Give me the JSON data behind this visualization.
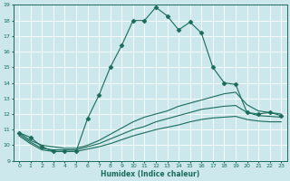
{
  "xlabel": "Humidex (Indice chaleur)",
  "xlim": [
    -0.5,
    23.5
  ],
  "ylim": [
    9,
    19
  ],
  "yticks": [
    9,
    10,
    11,
    12,
    13,
    14,
    15,
    16,
    17,
    18,
    19
  ],
  "xticks": [
    0,
    1,
    2,
    3,
    4,
    5,
    6,
    7,
    8,
    9,
    10,
    11,
    12,
    13,
    14,
    15,
    16,
    17,
    18,
    19,
    20,
    21,
    22,
    23
  ],
  "bg_color": "#cce8ec",
  "grid_color": "#b0d4d8",
  "line_color": "#1a6b5a",
  "lines": [
    {
      "x": [
        0,
        1,
        2,
        3,
        4,
        5,
        6,
        7,
        8,
        9,
        10,
        11,
        12,
        13,
        14,
        15,
        16,
        17,
        18,
        19,
        20,
        21,
        22,
        23
      ],
      "y": [
        10.8,
        10.5,
        9.9,
        9.6,
        9.6,
        9.6,
        11.7,
        13.2,
        15.0,
        16.4,
        18.0,
        18.0,
        18.85,
        18.3,
        17.4,
        17.9,
        17.2,
        15.0,
        14.0,
        13.9,
        12.1,
        12.0,
        12.1,
        11.9
      ],
      "marker": "D",
      "markersize": 2.5,
      "linestyle": "-"
    },
    {
      "x": [
        0,
        1,
        2,
        3,
        4,
        5,
        6,
        7,
        8,
        9,
        10,
        11,
        12,
        13,
        14,
        15,
        16,
        17,
        18,
        19,
        20,
        21,
        22,
        23
      ],
      "y": [
        10.8,
        10.3,
        10.0,
        9.9,
        9.8,
        9.8,
        10.0,
        10.3,
        10.7,
        11.1,
        11.5,
        11.8,
        12.0,
        12.2,
        12.5,
        12.7,
        12.9,
        13.1,
        13.3,
        13.4,
        12.6,
        12.2,
        12.1,
        12.0
      ],
      "marker": null,
      "markersize": 0,
      "linestyle": "-"
    },
    {
      "x": [
        0,
        1,
        2,
        3,
        4,
        5,
        6,
        7,
        8,
        9,
        10,
        11,
        12,
        13,
        14,
        15,
        16,
        17,
        18,
        19,
        20,
        21,
        22,
        23
      ],
      "y": [
        10.7,
        10.2,
        9.8,
        9.7,
        9.7,
        9.7,
        9.9,
        10.1,
        10.4,
        10.7,
        11.0,
        11.2,
        11.5,
        11.7,
        11.9,
        12.1,
        12.3,
        12.4,
        12.5,
        12.55,
        12.1,
        11.9,
        11.85,
        11.8
      ],
      "marker": null,
      "markersize": 0,
      "linestyle": "-"
    },
    {
      "x": [
        0,
        1,
        2,
        3,
        4,
        5,
        6,
        7,
        8,
        9,
        10,
        11,
        12,
        13,
        14,
        15,
        16,
        17,
        18,
        19,
        20,
        21,
        22,
        23
      ],
      "y": [
        10.6,
        10.1,
        9.7,
        9.6,
        9.6,
        9.6,
        9.75,
        9.9,
        10.1,
        10.35,
        10.6,
        10.8,
        11.0,
        11.15,
        11.3,
        11.5,
        11.65,
        11.75,
        11.8,
        11.85,
        11.65,
        11.55,
        11.5,
        11.5
      ],
      "marker": null,
      "markersize": 0,
      "linestyle": "-"
    }
  ]
}
